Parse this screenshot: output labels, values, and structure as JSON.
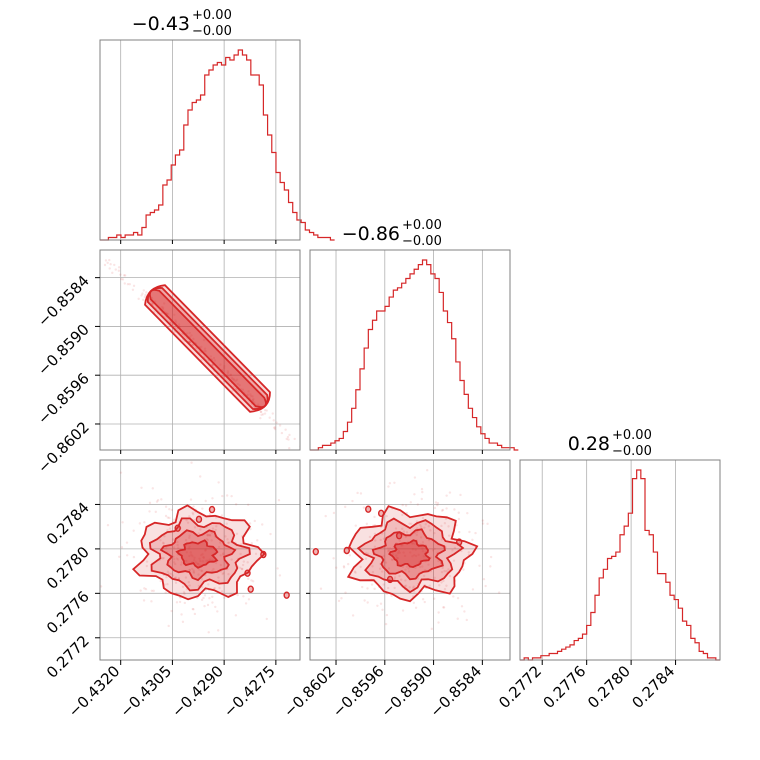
{
  "colors": {
    "accent": "#d62728",
    "grid": "#b0b0b0",
    "frame": "#808080"
  },
  "chart_data": {
    "type": "corner",
    "parameters": [
      {
        "title_value": "−0.43",
        "title_plus": "+0.00",
        "title_minus": "−0.00",
        "range": [
          -0.4326,
          -0.4268
        ],
        "ticks": [
          {
            "value": -0.432,
            "label": "−0.4320"
          },
          {
            "value": -0.4305,
            "label": "−0.4305"
          },
          {
            "value": -0.429,
            "label": "−0.4290"
          },
          {
            "value": -0.4275,
            "label": "−0.4275"
          }
        ],
        "histogram": {
          "start": -0.4326,
          "step": 0.0001215,
          "counts": [
            0,
            0,
            1,
            1,
            2,
            1,
            2,
            2,
            3,
            2,
            5,
            10,
            11,
            12,
            14,
            22,
            24,
            30,
            34,
            36,
            46,
            52,
            55,
            56,
            58,
            66,
            68,
            70,
            71,
            70,
            73,
            72,
            74,
            76,
            74,
            72,
            66,
            66,
            62,
            50,
            42,
            35,
            27,
            23,
            20,
            15,
            11,
            8,
            7,
            4,
            3,
            2,
            1,
            1,
            1,
            0
          ]
        }
      },
      {
        "title_value": "−0.86",
        "title_plus": "+0.00",
        "title_minus": "−0.00",
        "range": [
          -0.86052,
          -0.85806
        ],
        "ticks": [
          {
            "value": -0.8602,
            "label": "−0.8602"
          },
          {
            "value": -0.8596,
            "label": "−0.8596"
          },
          {
            "value": -0.859,
            "label": "−0.8590"
          },
          {
            "value": -0.8584,
            "label": "−0.8584"
          }
        ],
        "histogram": {
          "start": -0.86052,
          "step": 5.125e-05,
          "counts": [
            0,
            0,
            1,
            2,
            2,
            3,
            4,
            5,
            8,
            12,
            18,
            26,
            35,
            44,
            52,
            56,
            60,
            60,
            62,
            66,
            69,
            70,
            72,
            74,
            76,
            78,
            80,
            82,
            80,
            76,
            74,
            68,
            60,
            55,
            48,
            38,
            30,
            24,
            18,
            14,
            10,
            7,
            5,
            3,
            3,
            2,
            1,
            1,
            1,
            0
          ]
        }
      },
      {
        "title_value": "0.28",
        "title_plus": "+0.00",
        "title_minus": "−0.00",
        "range": [
          0.277,
          0.2788
        ],
        "ticks": [
          {
            "value": 0.2772,
            "label": "0.2772"
          },
          {
            "value": 0.2776,
            "label": "0.2776"
          },
          {
            "value": 0.278,
            "label": "0.2780"
          },
          {
            "value": 0.2784,
            "label": "0.2784"
          }
        ],
        "histogram": {
          "start": 0.277,
          "step": 3.75e-05,
          "counts": [
            0,
            1,
            0,
            1,
            1,
            2,
            2,
            3,
            3,
            4,
            5,
            6,
            7,
            9,
            10,
            12,
            16,
            22,
            30,
            38,
            42,
            47,
            48,
            50,
            58,
            62,
            68,
            84,
            88,
            84,
            60,
            58,
            50,
            40,
            40,
            36,
            30,
            28,
            24,
            18,
            16,
            10,
            8,
            4,
            3,
            1,
            1,
            0
          ]
        }
      }
    ],
    "lower_panels": [
      {
        "x_param": 0,
        "y_param": 1,
        "correlation": -0.96
      },
      {
        "x_param": 0,
        "y_param": 2,
        "correlation": 0.15
      },
      {
        "x_param": 1,
        "y_param": 2,
        "correlation": -0.1
      }
    ],
    "grid": true
  }
}
